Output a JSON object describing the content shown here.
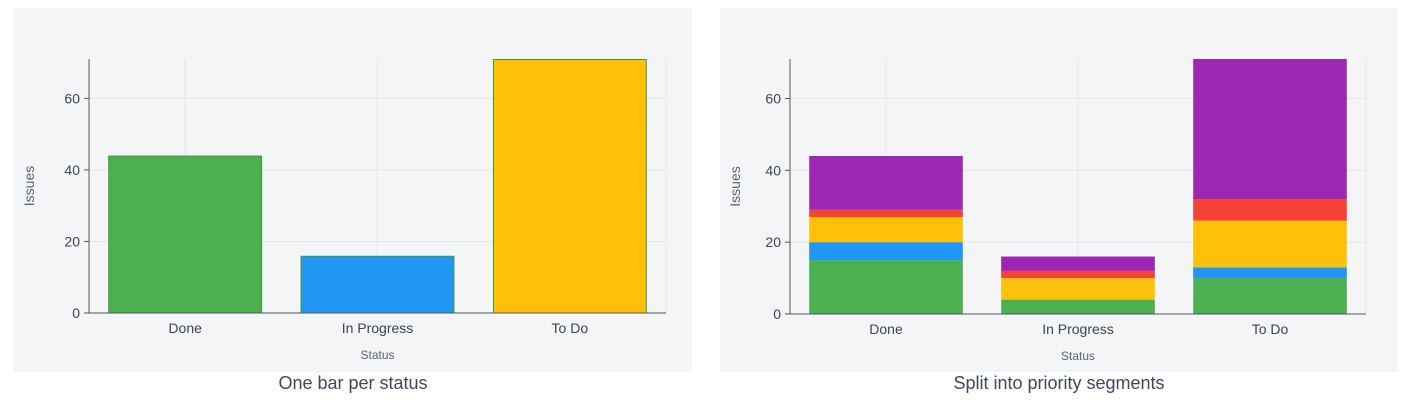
{
  "chart_data": [
    {
      "type": "bar",
      "caption": "One bar per status",
      "categories": [
        "Done",
        "In Progress",
        "To Do"
      ],
      "values": [
        44,
        16,
        71
      ],
      "colors": [
        "#4caf50",
        "#2196f3",
        "#ffc107"
      ],
      "edge_color": "#3a9a3a",
      "xlabel": "Status",
      "ylabel": "Issues",
      "ylim": [
        0,
        71
      ],
      "yticks": [
        0,
        20,
        40,
        60
      ],
      "grid": true
    },
    {
      "type": "bar",
      "stacked": true,
      "caption": "Split into priority segments",
      "categories": [
        "Done",
        "In Progress",
        "To Do"
      ],
      "series": [
        {
          "values": [
            15,
            4,
            10
          ],
          "color": "#4caf50"
        },
        {
          "values": [
            5,
            0,
            3
          ],
          "color": "#2196f3"
        },
        {
          "values": [
            7,
            6,
            13
          ],
          "color": "#ffc107"
        },
        {
          "values": [
            2,
            2,
            6
          ],
          "color": "#f44336"
        },
        {
          "values": [
            15,
            4,
            39
          ],
          "color": "#9c27b0"
        }
      ],
      "xlabel": "Status",
      "ylabel": "Issues",
      "ylim": [
        0,
        71
      ],
      "yticks": [
        0,
        20,
        40,
        60
      ],
      "grid": true
    }
  ]
}
